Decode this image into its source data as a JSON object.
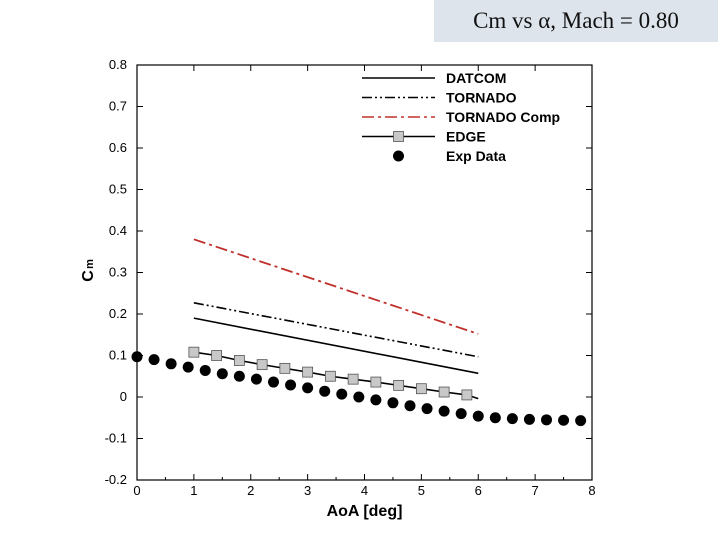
{
  "slide": {
    "title": "Cm vs α, Mach = 0.80"
  },
  "chart_data": {
    "type": "line",
    "title": "Cm vs α, Mach = 0.80",
    "xlabel": "AoA [deg]",
    "ylabel_main": "C",
    "ylabel_sub": "m",
    "xlim": [
      0,
      8
    ],
    "ylim": [
      -0.2,
      0.8
    ],
    "xticks": [
      0,
      1,
      2,
      3,
      4,
      5,
      6,
      7,
      8
    ],
    "yticks": [
      -0.2,
      -0.1,
      0,
      0.1,
      0.2,
      0.3,
      0.4,
      0.5,
      0.6,
      0.7,
      0.8
    ],
    "ytick_labels": [
      "-0.2",
      "-0.1",
      "0",
      "0.1",
      "0.2",
      "0.3",
      "0.4",
      "0.5",
      "0.6",
      "0.7",
      "0.8"
    ],
    "grid": false,
    "legend_position": "top-right",
    "series": [
      {
        "name": "DATCOM",
        "style": "solid",
        "color": "#000000",
        "marker": "none",
        "x": [
          1,
          6
        ],
        "y": [
          0.19,
          0.057
        ]
      },
      {
        "name": "TORNADO",
        "style": "dashdotdot",
        "color": "#000000",
        "marker": "none",
        "x": [
          1,
          6
        ],
        "y": [
          0.227,
          0.097
        ]
      },
      {
        "name": "TORNADO Comp",
        "style": "dashdot",
        "color": "#c0302a",
        "marker": "none",
        "x": [
          1,
          6
        ],
        "y": [
          0.38,
          0.152
        ]
      },
      {
        "name": "EDGE",
        "style": "solid",
        "color": "#000000",
        "marker": "square",
        "marker_color": "#c8c8c8",
        "x": [
          1.0,
          1.4,
          1.8,
          2.2,
          2.6,
          3.0,
          3.4,
          3.8,
          4.2,
          4.6,
          5.0,
          5.4,
          5.8,
          6.0
        ],
        "y": [
          0.108,
          0.1,
          0.088,
          0.078,
          0.069,
          0.06,
          0.05,
          0.043,
          0.036,
          0.028,
          0.02,
          0.012,
          0.005,
          -0.004
        ],
        "marker_idx": [
          0,
          1,
          2,
          3,
          4,
          5,
          6,
          7,
          8,
          9,
          10,
          11,
          12
        ]
      },
      {
        "name": "Exp Data",
        "style": "none",
        "color": "#000000",
        "marker": "circle",
        "x": [
          0.0,
          0.3,
          0.6,
          0.9,
          1.2,
          1.5,
          1.8,
          2.1,
          2.4,
          2.7,
          3.0,
          3.3,
          3.6,
          3.9,
          4.2,
          4.5,
          4.8,
          5.1,
          5.4,
          5.7,
          6.0,
          6.3,
          6.6,
          6.9,
          7.2,
          7.5,
          7.8
        ],
        "y": [
          0.097,
          0.09,
          0.08,
          0.072,
          0.064,
          0.056,
          0.05,
          0.043,
          0.036,
          0.029,
          0.022,
          0.014,
          0.007,
          0.0,
          -0.007,
          -0.014,
          -0.021,
          -0.028,
          -0.034,
          -0.04,
          -0.046,
          -0.05,
          -0.052,
          -0.054,
          -0.055,
          -0.056,
          -0.057
        ]
      }
    ]
  }
}
